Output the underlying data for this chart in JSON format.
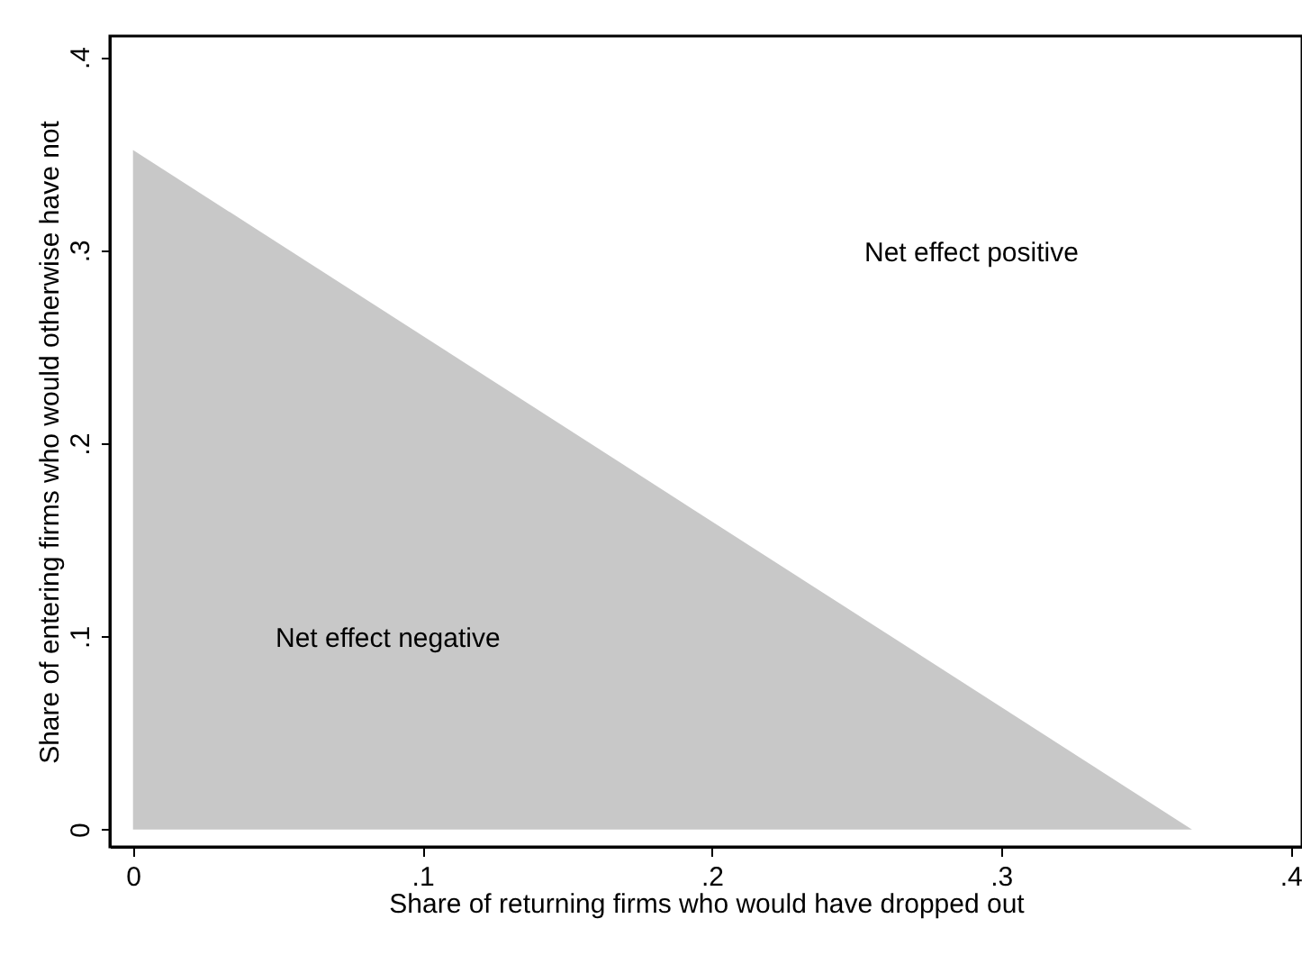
{
  "chart_data": {
    "type": "area",
    "xlabel": "Share of returning firms who would have dropped out",
    "ylabel": "Share of entering firms who would otherwise have not",
    "x": [
      0,
      0.366
    ],
    "series": [
      {
        "color": "#c8c8c8",
        "values": [
          0.352,
          0
        ]
      }
    ],
    "xlim": [
      -0.008,
      0.404
    ],
    "xticks": [
      {
        "value": 0,
        "label": "0"
      },
      {
        "value": 0.1,
        "label": ".1"
      },
      {
        "value": 0.2,
        "label": ".2"
      },
      {
        "value": 0.3,
        "label": ".3"
      },
      {
        "value": 0.4,
        "label": ".4"
      }
    ],
    "ylim": [
      -0.009,
      0.411
    ],
    "yticks": [
      {
        "value": 0,
        "label": "0"
      },
      {
        "value": 0.1,
        "label": ".1"
      },
      {
        "value": 0.2,
        "label": ".2"
      },
      {
        "value": 0.3,
        "label": ".3"
      },
      {
        "value": 0.4,
        "label": ".4"
      }
    ],
    "grid": false,
    "annotations": [
      "Net effect positive",
      "Net effect negative"
    ]
  }
}
